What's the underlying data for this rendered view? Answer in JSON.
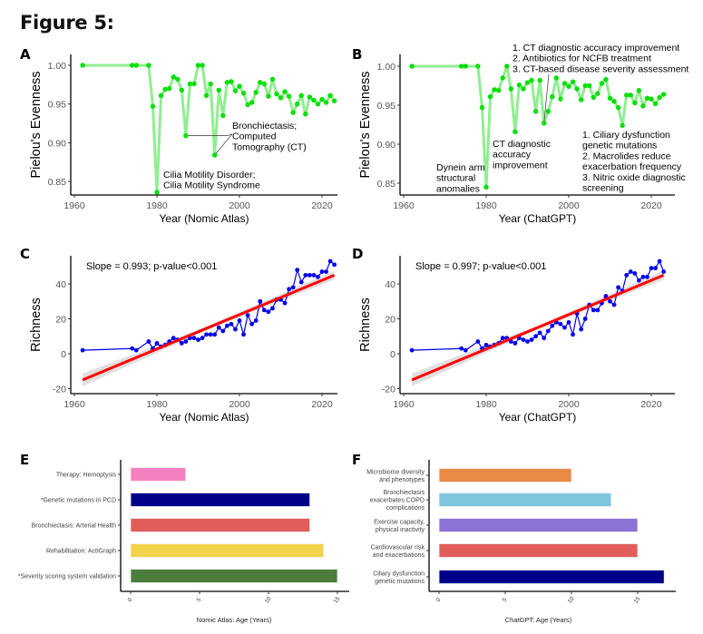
{
  "figure_title": "Figure 5:",
  "chart_data": [
    {
      "panel": "A",
      "type": "line",
      "xlabel": "Year (Nomic Atlas)",
      "ylabel": "Pielou's Evenness",
      "xlim": [
        1960,
        2025
      ],
      "ylim": [
        0.835,
        1.005
      ],
      "xticks": [
        1960,
        1980,
        2000,
        2020
      ],
      "yticks": [
        "0.85",
        "0.90",
        "0.95",
        "1.00"
      ],
      "ytick_values": [
        0.85,
        0.9,
        0.95,
        1.0
      ],
      "color": "#00e000",
      "line_color": "#90ee90",
      "x": [
        1962,
        1974,
        1975,
        1978,
        1979,
        1980,
        1981,
        1982,
        1983,
        1984,
        1985,
        1986,
        1987,
        1988,
        1989,
        1990,
        1991,
        1992,
        1993,
        1994,
        1995,
        1996,
        1997,
        1998,
        1999,
        2000,
        2001,
        2002,
        2003,
        2004,
        2005,
        2006,
        2007,
        2008,
        2009,
        2010,
        2011,
        2012,
        2013,
        2014,
        2015,
        2016,
        2017,
        2018,
        2019,
        2020,
        2021,
        2022,
        2023
      ],
      "y": [
        1.0,
        1.0,
        1.0,
        1.0,
        0.947,
        0.836,
        0.961,
        0.969,
        0.97,
        0.985,
        0.982,
        0.968,
        0.909,
        0.976,
        0.976,
        1.0,
        1.0,
        0.961,
        0.976,
        0.884,
        0.968,
        0.935,
        0.978,
        0.979,
        0.967,
        0.973,
        0.964,
        0.949,
        0.952,
        0.965,
        0.978,
        0.976,
        0.96,
        0.982,
        0.963,
        0.958,
        0.966,
        0.96,
        0.939,
        0.95,
        0.961,
        0.937,
        0.959,
        0.955,
        0.95,
        0.956,
        0.952,
        0.961,
        0.954
      ],
      "annotations": [
        {
          "text": [
            "Cilia Motility Disorder;",
            "Cilia Motility Syndrome"
          ],
          "x": 1980,
          "y": 0.836
        },
        {
          "text": [
            "Bronchiectasis;",
            "Computed",
            "Tomography (CT)"
          ],
          "points": [
            [
              1987,
              0.909
            ],
            [
              1994,
              0.884
            ]
          ]
        }
      ]
    },
    {
      "panel": "B",
      "type": "line",
      "xlabel": "Year (ChatGPT)",
      "ylabel": "Pielou's Evenness",
      "xlim": [
        1960,
        2025
      ],
      "ylim": [
        0.835,
        1.005
      ],
      "xticks": [
        1960,
        1980,
        2000,
        2020
      ],
      "yticks": [
        "0.85",
        "0.90",
        "0.95",
        "1.00"
      ],
      "ytick_values": [
        0.85,
        0.9,
        0.95,
        1.0
      ],
      "color": "#00e000",
      "line_color": "#90ee90",
      "x": [
        1962,
        1974,
        1975,
        1978,
        1979,
        1980,
        1981,
        1982,
        1983,
        1984,
        1985,
        1986,
        1987,
        1988,
        1989,
        1990,
        1991,
        1992,
        1993,
        1994,
        1995,
        1996,
        1997,
        1998,
        1999,
        2000,
        2001,
        2002,
        2003,
        2004,
        2005,
        2006,
        2007,
        2008,
        2009,
        2010,
        2011,
        2012,
        2013,
        2014,
        2015,
        2016,
        2017,
        2018,
        2019,
        2020,
        2021,
        2022,
        2023
      ],
      "y": [
        1.0,
        1.0,
        1.0,
        1.0,
        0.947,
        0.845,
        0.961,
        0.97,
        0.969,
        0.985,
        1.0,
        0.971,
        0.916,
        0.976,
        0.971,
        0.979,
        0.982,
        0.942,
        0.982,
        0.927,
        0.942,
        0.961,
        0.985,
        0.958,
        0.978,
        0.974,
        0.98,
        0.971,
        0.957,
        0.975,
        0.975,
        0.96,
        0.965,
        0.978,
        0.983,
        0.959,
        0.955,
        0.947,
        0.924,
        0.963,
        0.963,
        0.953,
        0.969,
        0.949,
        0.959,
        0.958,
        0.952,
        0.96,
        0.964
      ],
      "annotations": [
        {
          "text": [
            "Dynein arm",
            "structural",
            "anomalies"
          ],
          "x": 1980,
          "y": 0.845
        },
        {
          "text": [
            "CT diagnostic",
            "accuracy",
            "improvement"
          ],
          "x": 1987,
          "y": 0.916
        },
        {
          "text": [
            "1. CT diagnostic accuracy improvement",
            "2. Antibiotics for NCFB treatment",
            "3. CT-based disease severity assessment"
          ],
          "x": 1994,
          "y": 0.927
        },
        {
          "text": [
            "1. Ciliary dysfunction",
            "genetic mutations",
            "2. Macrolides reduce",
            "exacerbation frequency",
            "3. Nitric oxide diagnostic",
            "screening"
          ],
          "x": 2013,
          "y": 0.924
        }
      ]
    },
    {
      "panel": "C",
      "type": "scatter",
      "xlabel": "Year (Nomic Atlas)",
      "ylabel": "Richness",
      "xlim": [
        1960,
        2025
      ],
      "ylim": [
        -22,
        56
      ],
      "xticks": [
        1960,
        1980,
        2000,
        2020
      ],
      "yticks": [
        "-20",
        "0",
        "20",
        "40"
      ],
      "ytick_values": [
        -20,
        0,
        20,
        40
      ],
      "annotation": "Slope = 0.993; p-value<0.001",
      "point_color": "#0000ee",
      "fit_color": "#ff0000",
      "fit": {
        "slope": 0.993,
        "x0": 1962,
        "y0": -15,
        "x1": 2023,
        "y1": 45
      },
      "x": [
        1962,
        1974,
        1975,
        1978,
        1979,
        1980,
        1981,
        1982,
        1983,
        1984,
        1985,
        1986,
        1987,
        1988,
        1989,
        1990,
        1991,
        1992,
        1993,
        1994,
        1995,
        1996,
        1997,
        1998,
        1999,
        2000,
        2001,
        2002,
        2003,
        2004,
        2005,
        2006,
        2007,
        2008,
        2009,
        2010,
        2011,
        2012,
        2013,
        2014,
        2015,
        2016,
        2017,
        2018,
        2019,
        2020,
        2021,
        2022,
        2023
      ],
      "y": [
        2,
        3,
        2,
        7,
        3,
        6,
        4,
        5,
        7,
        9,
        8,
        6,
        7,
        9,
        9,
        8,
        9,
        11,
        11,
        11,
        15,
        13,
        16,
        17,
        14,
        19,
        11,
        22,
        17,
        19,
        30,
        25,
        24,
        26,
        31,
        31,
        29,
        37,
        38,
        48,
        41,
        45,
        45,
        45,
        44,
        47,
        47,
        53,
        51
      ]
    },
    {
      "panel": "D",
      "type": "scatter",
      "xlabel": "Year (ChatGPT)",
      "ylabel": "Richness",
      "xlim": [
        1960,
        2025
      ],
      "ylim": [
        -22,
        56
      ],
      "xticks": [
        1960,
        1980,
        2000,
        2020
      ],
      "yticks": [
        "-20",
        "0",
        "20",
        "40"
      ],
      "ytick_values": [
        -20,
        0,
        20,
        40
      ],
      "annotation": "Slope = 0.997; p-value<0.001",
      "point_color": "#0000ee",
      "fit_color": "#ff0000",
      "fit": {
        "slope": 0.997,
        "x0": 1962,
        "y0": -15,
        "x1": 2023,
        "y1": 45
      },
      "x": [
        1962,
        1974,
        1975,
        1978,
        1979,
        1980,
        1981,
        1982,
        1983,
        1984,
        1985,
        1986,
        1987,
        1988,
        1989,
        1990,
        1991,
        1992,
        1993,
        1994,
        1995,
        1996,
        1997,
        1998,
        1999,
        2000,
        2001,
        2002,
        2003,
        2004,
        2005,
        2006,
        2007,
        2008,
        2009,
        2010,
        2011,
        2012,
        2013,
        2014,
        2015,
        2016,
        2017,
        2018,
        2019,
        2020,
        2021,
        2022,
        2023
      ],
      "y": [
        2,
        3,
        2,
        7,
        3,
        5,
        4,
        5,
        6,
        9,
        9,
        7,
        6,
        9,
        8,
        7,
        8,
        10,
        12,
        9,
        13,
        16,
        18,
        17,
        15,
        18,
        11,
        23,
        14,
        20,
        28,
        25,
        25,
        29,
        33,
        30,
        28,
        38,
        36,
        45,
        47,
        46,
        42,
        44,
        44,
        49,
        49,
        53,
        47
      ]
    },
    {
      "panel": "E",
      "type": "bar",
      "orientation": "horizontal",
      "xlabel": "Nomic Atlas: Age (Years)",
      "xlim": [
        0,
        15.5
      ],
      "xticks": [
        "0",
        "5",
        "10",
        "15"
      ],
      "xtick_values": [
        0,
        5,
        10,
        15
      ],
      "categories": [
        "Therapy: Hemoptysis",
        "*Genetic mutations in PCD",
        "Bronchiectasis: Arterial Health",
        "Rehabilitation: ActiGraph",
        "*Severity scoring system validation"
      ],
      "values": [
        4,
        13,
        13,
        14,
        15
      ],
      "colors": [
        "#f580c0",
        "#00008b",
        "#e05d5a",
        "#f2d44a",
        "#4a7d3a"
      ]
    },
    {
      "panel": "F",
      "type": "bar",
      "orientation": "horizontal",
      "xlabel": "ChatGPT: Age (Years)",
      "xlim": [
        0,
        18
      ],
      "xticks": [
        "0",
        "5",
        "10",
        "15"
      ],
      "xtick_values": [
        0,
        5,
        10,
        15
      ],
      "categories": [
        [
          "Microbiome diversity",
          "and phenotypes"
        ],
        [
          "Bronchiectasis",
          "exacerbates COPD",
          "complications"
        ],
        [
          "Exercise capacity,",
          "physical inactivity"
        ],
        [
          "Cardiovascular risk",
          "and exacerbations"
        ],
        [
          "Ciliary dysfunction",
          "genetic mutations"
        ]
      ],
      "values": [
        10,
        13,
        15,
        15,
        17
      ],
      "colors": [
        "#ea8a44",
        "#7ec6dc",
        "#8c72d4",
        "#e05d5a",
        "#00008b"
      ]
    }
  ]
}
